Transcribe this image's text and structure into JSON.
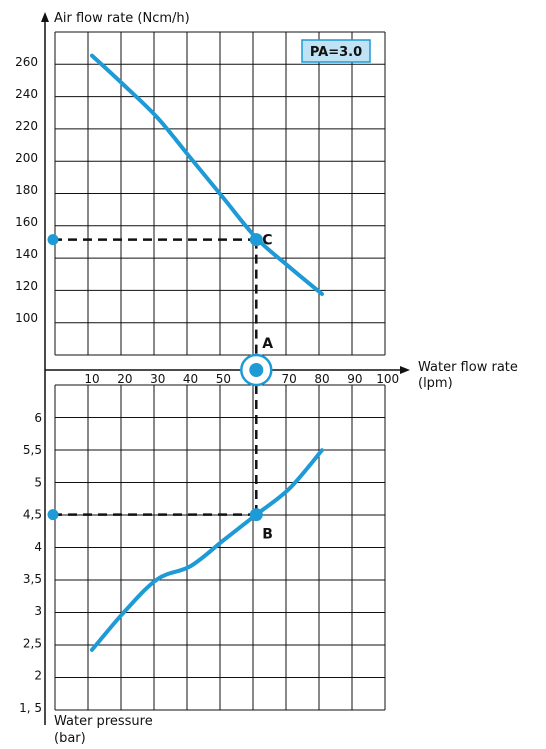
{
  "colors": {
    "curve": "#1e9ad6",
    "grid": "#111111",
    "badge_bg": "#bfe3f5",
    "badge_border": "#1e9ad6"
  },
  "labels": {
    "y_upper": "Air flow rate (Ncm/h)",
    "x": "Water flow rate",
    "x_unit": "(lpm)",
    "y_lower_line1": "Water pressure",
    "y_lower_line2": "(bar)",
    "badge": "PA=3.0"
  },
  "chart_data": [
    {
      "type": "line",
      "panel": "upper",
      "ylabel": "Air flow rate (Ncm/h)",
      "xlabel": "Water flow rate (lpm)",
      "x_ticks": [
        "10",
        "20",
        "30",
        "40",
        "50",
        "60",
        "70",
        "80",
        "90",
        "100"
      ],
      "y_ticks": [
        "100",
        "120",
        "140",
        "160",
        "180",
        "200",
        "220",
        "240",
        "260"
      ],
      "xlim": [
        0,
        100
      ],
      "ylim": [
        80,
        270
      ],
      "grid": true,
      "series": [
        {
          "x": [
            10,
            20,
            30,
            40,
            50,
            60,
            70,
            80
          ],
          "y": [
            264,
            245,
            225,
            200,
            175,
            150,
            132,
            115
          ]
        }
      ],
      "guides": [
        {
          "label": "C",
          "x": 60,
          "y": 149
        }
      ],
      "badge": "PA=3.0"
    },
    {
      "type": "line",
      "panel": "lower",
      "ylabel": "Water pressure (bar)",
      "xlabel": "Water flow rate (lpm)",
      "y_ticks": [
        "6",
        "5,5",
        "5",
        "4,5",
        "4",
        "3,5",
        "3",
        "2,5",
        "2",
        "1, 5"
      ],
      "xlim": [
        0,
        100
      ],
      "ylim": [
        1.25,
        6.5
      ],
      "grid": true,
      "series": [
        {
          "x": [
            10,
            20,
            30,
            40,
            50,
            60,
            70,
            80
          ],
          "y": [
            2.4,
            3.0,
            3.5,
            3.7,
            4.1,
            4.5,
            4.9,
            5.5
          ]
        }
      ],
      "guides": [
        {
          "label": "B",
          "x": 60,
          "y": 4.5
        }
      ]
    }
  ],
  "points": [
    {
      "label": "A"
    },
    {
      "label": "B"
    },
    {
      "label": "C"
    }
  ]
}
